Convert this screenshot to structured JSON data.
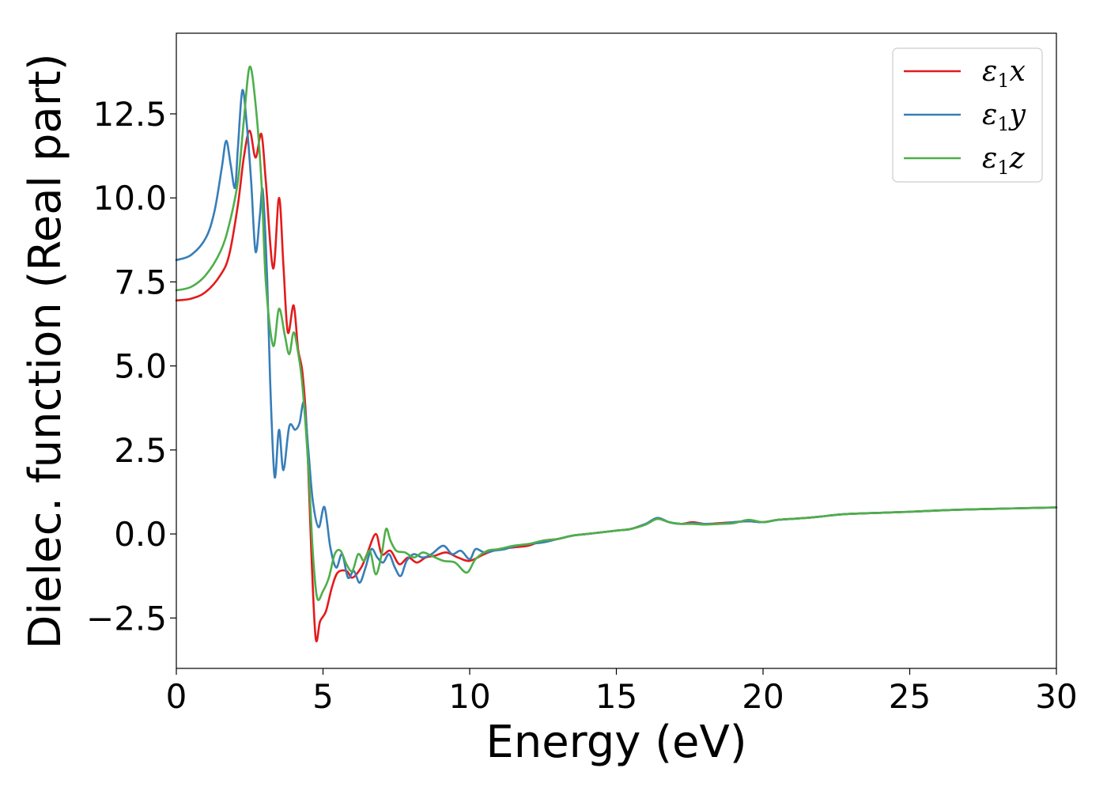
{
  "chart_data": {
    "type": "line",
    "title": "",
    "xlabel": "Energy (eV)",
    "ylabel": "Dielec. function (Real part)",
    "xlim": [
      0,
      30
    ],
    "ylim": [
      -4,
      14.9
    ],
    "xticks": [
      0,
      5,
      10,
      15,
      20,
      25,
      30
    ],
    "xtick_labels": [
      "0",
      "5",
      "10",
      "15",
      "20",
      "25",
      "30"
    ],
    "yticks": [
      -2.5,
      0,
      2.5,
      5,
      7.5,
      10,
      12.5
    ],
    "ytick_labels": [
      "−2.5",
      "0.0",
      "2.5",
      "5.0",
      "7.5",
      "10.0",
      "12.5"
    ],
    "grid": false,
    "legend_position": "top-right",
    "series": [
      {
        "name": "ε",
        "sub": "1",
        "suffix": "x",
        "color": "#e41a1c",
        "points": [
          [
            0,
            6.95
          ],
          [
            0.5,
            7.0
          ],
          [
            1.0,
            7.2
          ],
          [
            1.5,
            7.7
          ],
          [
            1.8,
            8.3
          ],
          [
            2.1,
            9.8
          ],
          [
            2.3,
            11.2
          ],
          [
            2.5,
            12.0
          ],
          [
            2.7,
            11.2
          ],
          [
            2.9,
            11.9
          ],
          [
            3.05,
            10.5
          ],
          [
            3.3,
            7.9
          ],
          [
            3.5,
            10.0
          ],
          [
            3.65,
            8.0
          ],
          [
            3.8,
            6.0
          ],
          [
            4.0,
            6.8
          ],
          [
            4.15,
            5.5
          ],
          [
            4.3,
            4.8
          ],
          [
            4.45,
            3.0
          ],
          [
            4.6,
            -0.5
          ],
          [
            4.75,
            -3.1
          ],
          [
            4.9,
            -2.6
          ],
          [
            5.1,
            -2.3
          ],
          [
            5.3,
            -1.6
          ],
          [
            5.5,
            -1.15
          ],
          [
            5.8,
            -1.1
          ],
          [
            6.0,
            -1.3
          ],
          [
            6.3,
            -1.0
          ],
          [
            6.5,
            -0.6
          ],
          [
            6.8,
            0.0
          ],
          [
            7.0,
            -0.6
          ],
          [
            7.3,
            -0.5
          ],
          [
            7.6,
            -0.9
          ],
          [
            7.9,
            -0.7
          ],
          [
            8.2,
            -0.85
          ],
          [
            8.5,
            -0.7
          ],
          [
            8.8,
            -0.65
          ],
          [
            9.2,
            -0.55
          ],
          [
            9.6,
            -0.7
          ],
          [
            10.0,
            -0.8
          ],
          [
            10.5,
            -0.6
          ],
          [
            11.0,
            -0.45
          ],
          [
            11.5,
            -0.4
          ],
          [
            12.0,
            -0.35
          ],
          [
            12.5,
            -0.2
          ],
          [
            13.0,
            -0.15
          ],
          [
            13.5,
            -0.05
          ],
          [
            14.0,
            0.0
          ],
          [
            14.5,
            0.05
          ],
          [
            15.0,
            0.1
          ],
          [
            15.5,
            0.15
          ],
          [
            16.0,
            0.3
          ],
          [
            16.4,
            0.45
          ],
          [
            16.8,
            0.35
          ],
          [
            17.2,
            0.3
          ],
          [
            17.6,
            0.35
          ],
          [
            18.0,
            0.3
          ],
          [
            18.5,
            0.32
          ],
          [
            19.0,
            0.35
          ],
          [
            19.5,
            0.38
          ],
          [
            20.0,
            0.35
          ],
          [
            20.5,
            0.42
          ],
          [
            21.0,
            0.45
          ],
          [
            21.5,
            0.48
          ],
          [
            22.0,
            0.52
          ],
          [
            22.5,
            0.57
          ],
          [
            23.0,
            0.6
          ],
          [
            24.0,
            0.63
          ],
          [
            25.0,
            0.66
          ],
          [
            26.0,
            0.7
          ],
          [
            27.0,
            0.73
          ],
          [
            28.0,
            0.75
          ],
          [
            29.0,
            0.77
          ],
          [
            30.0,
            0.79
          ]
        ]
      },
      {
        "name": "ε",
        "sub": "1",
        "suffix": "y",
        "color": "#377eb8",
        "points": [
          [
            0,
            8.15
          ],
          [
            0.5,
            8.3
          ],
          [
            1.0,
            8.8
          ],
          [
            1.3,
            9.6
          ],
          [
            1.55,
            10.9
          ],
          [
            1.7,
            11.7
          ],
          [
            1.85,
            11.0
          ],
          [
            2.0,
            10.3
          ],
          [
            2.1,
            11.5
          ],
          [
            2.25,
            13.2
          ],
          [
            2.4,
            12.2
          ],
          [
            2.55,
            10.5
          ],
          [
            2.7,
            8.4
          ],
          [
            2.85,
            9.5
          ],
          [
            2.95,
            10.2
          ],
          [
            3.1,
            7.5
          ],
          [
            3.2,
            4.5
          ],
          [
            3.35,
            1.7
          ],
          [
            3.5,
            3.1
          ],
          [
            3.65,
            1.9
          ],
          [
            3.85,
            3.2
          ],
          [
            4.05,
            3.1
          ],
          [
            4.2,
            3.3
          ],
          [
            4.35,
            3.9
          ],
          [
            4.5,
            2.5
          ],
          [
            4.65,
            1.0
          ],
          [
            4.85,
            0.2
          ],
          [
            5.05,
            0.8
          ],
          [
            5.25,
            -0.4
          ],
          [
            5.45,
            -1.0
          ],
          [
            5.65,
            -0.6
          ],
          [
            5.85,
            -1.3
          ],
          [
            6.05,
            -1.1
          ],
          [
            6.25,
            -1.45
          ],
          [
            6.45,
            -1.0
          ],
          [
            6.65,
            -0.45
          ],
          [
            6.85,
            -0.7
          ],
          [
            7.05,
            -0.85
          ],
          [
            7.25,
            -0.6
          ],
          [
            7.45,
            -1.0
          ],
          [
            7.65,
            -1.25
          ],
          [
            7.85,
            -0.8
          ],
          [
            8.1,
            -0.6
          ],
          [
            8.4,
            -0.7
          ],
          [
            8.7,
            -0.6
          ],
          [
            9.1,
            -0.35
          ],
          [
            9.4,
            -0.6
          ],
          [
            9.7,
            -0.5
          ],
          [
            10.0,
            -0.75
          ],
          [
            10.2,
            -0.45
          ],
          [
            10.5,
            -0.55
          ],
          [
            10.8,
            -0.5
          ],
          [
            11.2,
            -0.45
          ],
          [
            11.6,
            -0.35
          ],
          [
            12.0,
            -0.3
          ],
          [
            12.5,
            -0.25
          ],
          [
            13.0,
            -0.15
          ],
          [
            13.5,
            -0.05
          ],
          [
            14.0,
            0.0
          ],
          [
            14.5,
            0.05
          ],
          [
            15.0,
            0.1
          ],
          [
            15.5,
            0.15
          ],
          [
            16.0,
            0.3
          ],
          [
            16.4,
            0.48
          ],
          [
            16.8,
            0.35
          ],
          [
            17.2,
            0.3
          ],
          [
            17.6,
            0.32
          ],
          [
            18.0,
            0.3
          ],
          [
            18.5,
            0.3
          ],
          [
            19.0,
            0.35
          ],
          [
            19.5,
            0.38
          ],
          [
            20.0,
            0.35
          ],
          [
            20.5,
            0.42
          ],
          [
            21.0,
            0.45
          ],
          [
            21.5,
            0.48
          ],
          [
            22.0,
            0.52
          ],
          [
            22.5,
            0.57
          ],
          [
            23.0,
            0.6
          ],
          [
            24.0,
            0.63
          ],
          [
            25.0,
            0.66
          ],
          [
            26.0,
            0.7
          ],
          [
            27.0,
            0.73
          ],
          [
            28.0,
            0.75
          ],
          [
            29.0,
            0.77
          ],
          [
            30.0,
            0.79
          ]
        ]
      },
      {
        "name": "ε",
        "sub": "1",
        "suffix": "z",
        "color": "#4daf4a",
        "points": [
          [
            0,
            7.25
          ],
          [
            0.5,
            7.35
          ],
          [
            1.0,
            7.7
          ],
          [
            1.5,
            8.4
          ],
          [
            1.8,
            9.2
          ],
          [
            2.1,
            10.5
          ],
          [
            2.3,
            12.3
          ],
          [
            2.5,
            13.9
          ],
          [
            2.7,
            12.8
          ],
          [
            2.9,
            10.5
          ],
          [
            3.05,
            7.5
          ],
          [
            3.3,
            5.6
          ],
          [
            3.5,
            6.7
          ],
          [
            3.7,
            5.9
          ],
          [
            3.85,
            5.35
          ],
          [
            4.0,
            6.0
          ],
          [
            4.15,
            5.4
          ],
          [
            4.3,
            4.4
          ],
          [
            4.5,
            2.0
          ],
          [
            4.65,
            -0.5
          ],
          [
            4.8,
            -1.9
          ],
          [
            5.0,
            -1.7
          ],
          [
            5.2,
            -1.3
          ],
          [
            5.4,
            -0.6
          ],
          [
            5.6,
            -0.5
          ],
          [
            5.8,
            -0.9
          ],
          [
            6.0,
            -1.1
          ],
          [
            6.2,
            -0.6
          ],
          [
            6.4,
            -0.8
          ],
          [
            6.6,
            -0.5
          ],
          [
            6.8,
            -1.2
          ],
          [
            7.0,
            -0.6
          ],
          [
            7.15,
            0.15
          ],
          [
            7.3,
            -0.2
          ],
          [
            7.5,
            -0.5
          ],
          [
            7.8,
            -0.55
          ],
          [
            8.1,
            -0.7
          ],
          [
            8.4,
            -0.55
          ],
          [
            8.7,
            -0.65
          ],
          [
            9.1,
            -0.8
          ],
          [
            9.5,
            -0.85
          ],
          [
            9.9,
            -1.15
          ],
          [
            10.2,
            -0.75
          ],
          [
            10.6,
            -0.5
          ],
          [
            11.0,
            -0.45
          ],
          [
            11.5,
            -0.35
          ],
          [
            12.0,
            -0.3
          ],
          [
            12.5,
            -0.2
          ],
          [
            13.0,
            -0.15
          ],
          [
            13.5,
            -0.05
          ],
          [
            14.0,
            0.0
          ],
          [
            14.5,
            0.05
          ],
          [
            15.0,
            0.1
          ],
          [
            15.5,
            0.15
          ],
          [
            16.0,
            0.28
          ],
          [
            16.4,
            0.45
          ],
          [
            16.8,
            0.35
          ],
          [
            17.2,
            0.3
          ],
          [
            17.6,
            0.3
          ],
          [
            18.0,
            0.28
          ],
          [
            18.5,
            0.3
          ],
          [
            19.0,
            0.32
          ],
          [
            19.5,
            0.42
          ],
          [
            20.0,
            0.35
          ],
          [
            20.5,
            0.42
          ],
          [
            21.0,
            0.45
          ],
          [
            21.5,
            0.48
          ],
          [
            22.0,
            0.52
          ],
          [
            22.5,
            0.57
          ],
          [
            23.0,
            0.6
          ],
          [
            24.0,
            0.63
          ],
          [
            25.0,
            0.66
          ],
          [
            26.0,
            0.7
          ],
          [
            27.0,
            0.73
          ],
          [
            28.0,
            0.75
          ],
          [
            29.0,
            0.77
          ],
          [
            30.0,
            0.79
          ]
        ]
      }
    ]
  }
}
